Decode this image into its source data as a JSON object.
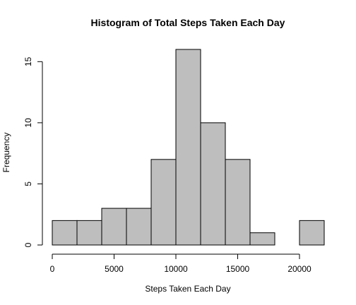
{
  "chart_data": {
    "type": "bar",
    "title": "Histogram of Total Steps Taken Each Day",
    "xlabel": "Steps Taken Each Day",
    "ylabel": "Frequency",
    "bin_edges": [
      0,
      2000,
      4000,
      6000,
      8000,
      10000,
      12000,
      14000,
      16000,
      18000,
      20000,
      22000
    ],
    "values": [
      2,
      2,
      3,
      3,
      7,
      16,
      10,
      7,
      1,
      0,
      2
    ],
    "xlim": [
      0,
      22000
    ],
    "ylim": [
      0,
      16
    ],
    "x_ticks": [
      0,
      5000,
      10000,
      15000,
      20000
    ],
    "y_ticks": [
      0,
      5,
      10,
      15
    ],
    "bar_color": "#bebebe",
    "grid": false,
    "legend": "none"
  }
}
